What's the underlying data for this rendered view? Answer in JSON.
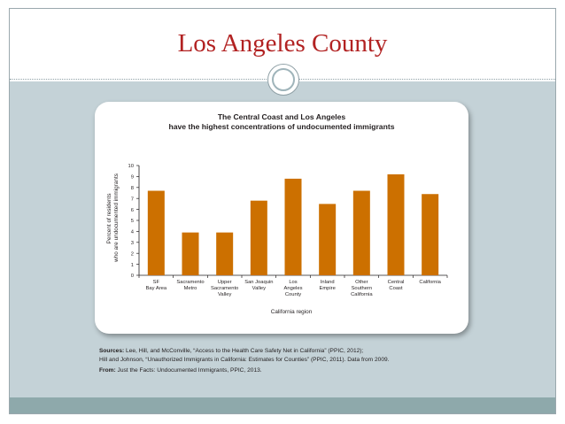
{
  "slide": {
    "title": "Los Angeles County"
  },
  "chart_data": {
    "type": "bar",
    "title": "The Central Coast and Los Angeles",
    "subtitle": "have the highest concentrations of undocumented immigrants",
    "ylabel_line1": "Percent of residents",
    "ylabel_line2": "who are undocumented immigrants",
    "xlabel": "California region",
    "ylim": [
      0,
      10
    ],
    "yticks": [
      "0",
      "1",
      "2",
      "3",
      "4",
      "5",
      "6",
      "7",
      "8",
      "9",
      "10"
    ],
    "categories": [
      [
        "SF",
        "Bay Area"
      ],
      [
        "Sacramento",
        "Metro"
      ],
      [
        "Upper",
        "Sacramento",
        "Valley"
      ],
      [
        "San Joaquin",
        "Valley"
      ],
      [
        "Los",
        "Angeles",
        "County"
      ],
      [
        "Inland",
        "Empire"
      ],
      [
        "Other",
        "Southern",
        "California"
      ],
      [
        "Central",
        "Coast"
      ],
      [
        "California"
      ]
    ],
    "values": [
      7.7,
      3.9,
      3.9,
      6.8,
      8.8,
      6.5,
      7.7,
      9.2,
      7.4
    ],
    "bar_color": "#cc7000",
    "grid": false
  },
  "sources": {
    "label": "Sources:",
    "line1": " Lee, Hill, and McConville, “Access to the Health Care Safety Net in California” (PPIC, 2012);",
    "line2": "Hill and Johnson, “Unauthorized Immigrants in California: Estimates for Counties” (PPIC, 2011). Data from 2009.",
    "from_label": "From:",
    "from_text": " Just the Facts: Undocumented Immigrants, PPIC, 2013."
  }
}
